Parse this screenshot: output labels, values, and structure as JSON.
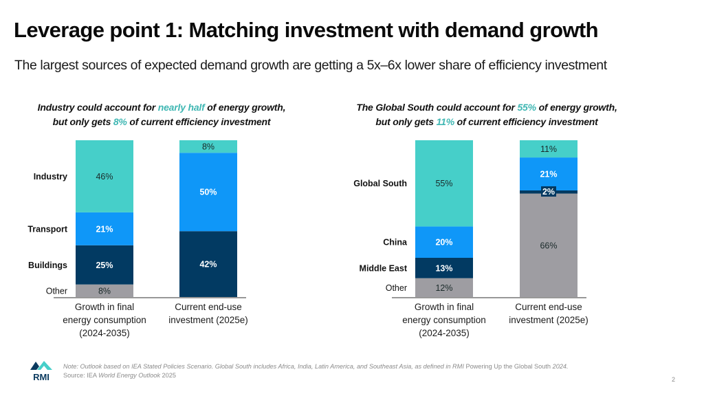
{
  "header": {
    "title": "Leverage point 1: Matching investment with demand growth",
    "subtitle": "The largest sources of expected demand growth are getting a 5x–6x lower share of efficiency investment"
  },
  "colors": {
    "teal": "#46cfc9",
    "blue": "#0f97f8",
    "navy": "#023a62",
    "gray": "#9e9da2",
    "highlight": "#3fb7b3"
  },
  "chart_data": [
    {
      "type": "bar",
      "stacked": true,
      "title_parts": [
        {
          "text": "Industry could account for ",
          "hl": false
        },
        {
          "text": "nearly half",
          "hl": true
        },
        {
          "text": " of energy growth,",
          "hl": false
        }
      ],
      "title_line2_parts": [
        {
          "text": "but only gets ",
          "hl": false
        },
        {
          "text": "8%",
          "hl": true
        },
        {
          "text": " of current efficiency investment",
          "hl": false
        }
      ],
      "categories": [
        "Growth in final energy consumption (2024-2035)",
        "Current end-use investment (2025e)"
      ],
      "category_lines": [
        [
          "Growth in final",
          "energy consumption",
          "(2024-2035)"
        ],
        [
          "Current end-use",
          "investment (2025e)"
        ]
      ],
      "series": [
        {
          "name": "Other",
          "color": "gray",
          "values": [
            8,
            0
          ],
          "labels": [
            "8%",
            ""
          ],
          "label_bold": false
        },
        {
          "name": "Buildings",
          "color": "navy",
          "values": [
            25,
            42
          ],
          "labels": [
            "25%",
            "42%"
          ],
          "label_bold": true
        },
        {
          "name": "Transport",
          "color": "blue",
          "values": [
            21,
            50
          ],
          "labels": [
            "21%",
            "50%"
          ],
          "label_bold": true
        },
        {
          "name": "Industry",
          "color": "teal",
          "values": [
            46,
            8
          ],
          "labels": [
            "46%",
            "8%"
          ],
          "label_bold": false
        }
      ],
      "ylim": [
        0,
        100
      ],
      "xlabel": "",
      "ylabel": ""
    },
    {
      "type": "bar",
      "stacked": true,
      "title_parts": [
        {
          "text": "The Global South could account for ",
          "hl": false
        },
        {
          "text": "55%",
          "hl": true
        },
        {
          "text": " of energy growth,",
          "hl": false
        }
      ],
      "title_line2_parts": [
        {
          "text": "but only gets ",
          "hl": false
        },
        {
          "text": "11%",
          "hl": true
        },
        {
          "text": " of current efficiency investment",
          "hl": false
        }
      ],
      "categories": [
        "Growth in final energy consumption (2024-2035)",
        "Current end-use investment (2025e)"
      ],
      "category_lines": [
        [
          "Growth in final",
          "energy consumption",
          "(2024-2035)"
        ],
        [
          "Current end-use",
          "investment (2025e)"
        ]
      ],
      "series": [
        {
          "name": "Other",
          "color": "gray",
          "values": [
            12,
            66
          ],
          "labels": [
            "12%",
            "66%"
          ],
          "label_bold": false
        },
        {
          "name": "Middle East",
          "color": "navy",
          "values": [
            13,
            2
          ],
          "labels": [
            "13%",
            "2%"
          ],
          "label_bold": true
        },
        {
          "name": "China",
          "color": "blue",
          "values": [
            20,
            21
          ],
          "labels": [
            "20%",
            "21%"
          ],
          "label_bold": true
        },
        {
          "name": "Global South",
          "color": "teal",
          "values": [
            55,
            11
          ],
          "labels": [
            "55%",
            "11%"
          ],
          "label_bold": false
        }
      ],
      "ylim": [
        0,
        100
      ],
      "xlabel": "",
      "ylabel": ""
    }
  ],
  "footer": {
    "note_parts": [
      {
        "text": "Note: Outlook based on IEA Stated Policies Scenario. Global South includes Africa, India, Latin America, and Southeast Asia, as defined in RMI ",
        "italic": true
      },
      {
        "text": "Powering Up the Global South",
        "italic": false
      },
      {
        "text": " 2024.",
        "italic": true
      }
    ],
    "source_parts": [
      {
        "text": "Source: IEA ",
        "italic": false
      },
      {
        "text": "World Energy Outlook",
        "italic": true
      },
      {
        "text": " 2025",
        "italic": false
      }
    ],
    "logo_text": "RMI",
    "page_number": "2"
  }
}
